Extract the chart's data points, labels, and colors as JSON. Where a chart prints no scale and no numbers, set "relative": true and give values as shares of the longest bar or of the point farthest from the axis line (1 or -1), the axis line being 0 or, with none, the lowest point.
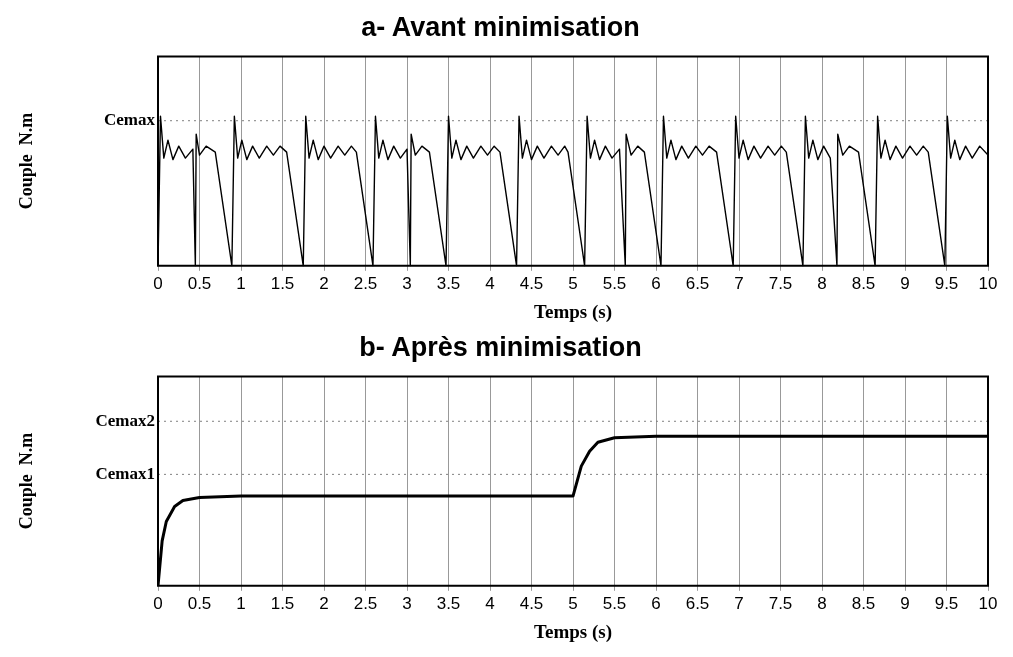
{
  "chart_data": [
    {
      "type": "line",
      "title": "a- Avant minimisation",
      "xlabel": "Temps (s)",
      "ylabel": "Couple  N.m",
      "relative": true,
      "grid": true,
      "legend": false,
      "marker": "none",
      "line_style": "solid",
      "xlim": [
        0,
        10
      ],
      "xticks": [
        0,
        0.5,
        1,
        1.5,
        2,
        2.5,
        3,
        3.5,
        4,
        4.5,
        5,
        5.5,
        6,
        6.5,
        7,
        7.5,
        8,
        8.5,
        9,
        9.5,
        10
      ],
      "ref_lines": [
        {
          "axis": "y",
          "value": 0.97,
          "label": "Cemax",
          "color": "#808080",
          "line_style": "dotted"
        }
      ],
      "series": [
        {
          "color": "#000000",
          "x": [
            0,
            0.03,
            0.07,
            0.12,
            0.18,
            0.25,
            0.33,
            0.42,
            0.45,
            0.46,
            0.5,
            0.58,
            0.69,
            0.89,
            0.92,
            0.96,
            1.01,
            1.07,
            1.14,
            1.22,
            1.31,
            1.39,
            1.47,
            1.55,
            1.75,
            1.78,
            1.82,
            1.87,
            1.93,
            2.0,
            2.08,
            2.17,
            2.25,
            2.33,
            2.39,
            2.59,
            2.62,
            2.66,
            2.71,
            2.77,
            2.84,
            2.92,
            3.0,
            3.04,
            3.05,
            3.1,
            3.18,
            3.27,
            3.47,
            3.5,
            3.54,
            3.59,
            3.65,
            3.72,
            3.8,
            3.89,
            3.97,
            4.05,
            4.12,
            4.32,
            4.35,
            4.39,
            4.44,
            4.5,
            4.57,
            4.65,
            4.74,
            4.82,
            4.9,
            4.94,
            5.14,
            5.17,
            5.21,
            5.26,
            5.32,
            5.39,
            5.47,
            5.56,
            5.63,
            5.64,
            5.7,
            5.78,
            5.86,
            6.06,
            6.09,
            6.13,
            6.18,
            6.24,
            6.31,
            6.39,
            6.48,
            6.56,
            6.64,
            6.73,
            6.93,
            6.96,
            7.0,
            7.05,
            7.11,
            7.18,
            7.26,
            7.35,
            7.43,
            7.51,
            7.57,
            7.77,
            7.8,
            7.84,
            7.89,
            7.95,
            8.02,
            8.1,
            8.18,
            8.19,
            8.25,
            8.33,
            8.44,
            8.64,
            8.67,
            8.71,
            8.76,
            8.82,
            8.89,
            8.97,
            9.06,
            9.14,
            9.22,
            9.28,
            9.48,
            9.51,
            9.55,
            9.6,
            9.66,
            9.73,
            9.81,
            9.9,
            10
          ],
          "values": [
            0,
            1,
            0.72,
            0.84,
            0.71,
            0.8,
            0.72,
            0.78,
            0,
            0.88,
            0.74,
            0.8,
            0.76,
            0,
            1,
            0.72,
            0.84,
            0.71,
            0.8,
            0.72,
            0.8,
            0.74,
            0.8,
            0.76,
            0,
            1,
            0.72,
            0.84,
            0.71,
            0.8,
            0.72,
            0.8,
            0.74,
            0.8,
            0.76,
            0,
            1,
            0.72,
            0.84,
            0.71,
            0.8,
            0.72,
            0.78,
            0,
            0.88,
            0.74,
            0.8,
            0.76,
            0,
            1,
            0.72,
            0.84,
            0.71,
            0.8,
            0.72,
            0.8,
            0.74,
            0.8,
            0.76,
            0,
            1,
            0.72,
            0.84,
            0.71,
            0.8,
            0.72,
            0.8,
            0.74,
            0.8,
            0.76,
            0,
            1,
            0.72,
            0.84,
            0.71,
            0.8,
            0.72,
            0.78,
            0,
            0.88,
            0.74,
            0.8,
            0.76,
            0,
            1,
            0.72,
            0.84,
            0.71,
            0.8,
            0.72,
            0.8,
            0.74,
            0.8,
            0.76,
            0,
            1,
            0.72,
            0.84,
            0.71,
            0.8,
            0.72,
            0.8,
            0.74,
            0.8,
            0.76,
            0,
            1,
            0.72,
            0.84,
            0.71,
            0.8,
            0.72,
            0,
            0.88,
            0.74,
            0.8,
            0.76,
            0,
            1,
            0.72,
            0.84,
            0.71,
            0.8,
            0.72,
            0.8,
            0.74,
            0.8,
            0.76,
            0,
            1,
            0.72,
            0.84,
            0.71,
            0.8,
            0.72,
            0.8,
            0.74
          ]
        }
      ]
    },
    {
      "type": "line",
      "title": "b- Après minimisation",
      "xlabel": "Temps (s)",
      "ylabel": "Couple  N.m",
      "relative": true,
      "grid": true,
      "legend": false,
      "marker": "none",
      "line_style": "solid",
      "xlim": [
        0,
        10
      ],
      "xticks": [
        0,
        0.5,
        1,
        1.5,
        2,
        2.5,
        3,
        3.5,
        4,
        4.5,
        5,
        5.5,
        6,
        6.5,
        7,
        7.5,
        8,
        8.5,
        9,
        9.5,
        10
      ],
      "ref_lines": [
        {
          "axis": "y",
          "value": 1.1,
          "label": "Cemax2",
          "color": "#808080",
          "line_style": "dotted"
        },
        {
          "axis": "y",
          "value": 0.745,
          "label": "Cemax1",
          "color": "#808080",
          "line_style": "dotted"
        }
      ],
      "series": [
        {
          "color": "#000000",
          "x": [
            0,
            0.05,
            0.1,
            0.2,
            0.3,
            0.5,
            1,
            2,
            3,
            4,
            5,
            5.05,
            5.1,
            5.2,
            5.3,
            5.5,
            6,
            10
          ],
          "values": [
            0,
            0.3,
            0.43,
            0.53,
            0.57,
            0.59,
            0.6,
            0.6,
            0.6,
            0.6,
            0.6,
            0.7,
            0.8,
            0.9,
            0.96,
            0.99,
            1,
            1
          ]
        }
      ]
    }
  ]
}
